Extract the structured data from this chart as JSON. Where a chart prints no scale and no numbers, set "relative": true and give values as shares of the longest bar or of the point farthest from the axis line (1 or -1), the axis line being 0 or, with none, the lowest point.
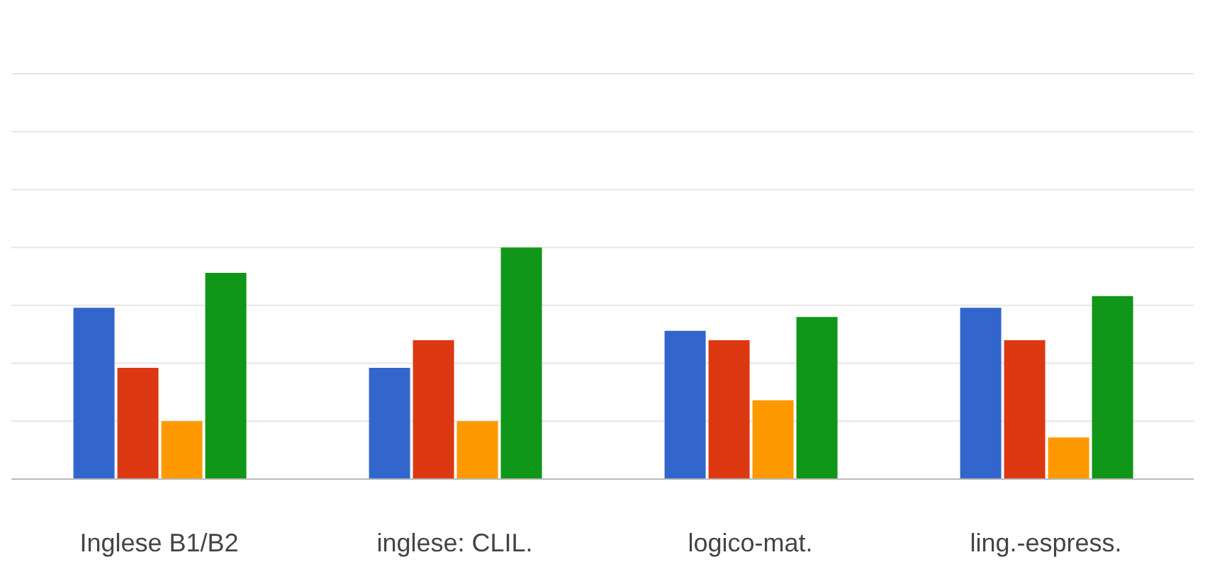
{
  "chart_data": {
    "type": "bar",
    "relative": true,
    "grid": "y",
    "categories": [
      "Inglese B1/B2",
      "inglese: CLIL.",
      "logico-mat.",
      "ling.-espress."
    ],
    "series": [
      {
        "color": "#3366cc",
        "values": [
          0.74,
          0.48,
          0.64,
          0.74
        ]
      },
      {
        "color": "#dc3912",
        "values": [
          0.48,
          0.6,
          0.6,
          0.6
        ]
      },
      {
        "color": "#ff9900",
        "values": [
          0.25,
          0.25,
          0.34,
          0.18
        ]
      },
      {
        "color": "#109618",
        "values": [
          0.89,
          1,
          0.7,
          0.79
        ]
      }
    ]
  }
}
